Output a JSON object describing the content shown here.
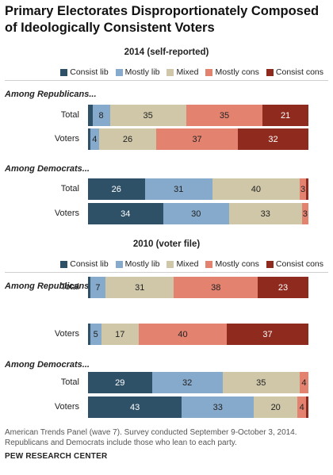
{
  "title": "Primary Electorates Disproportionately Composed of Ideologically Consistent Voters",
  "colors": {
    "consist_lib": "#2f5168",
    "mostly_lib": "#86aacb",
    "mixed": "#cfc7a8",
    "mostly_cons": "#e48270",
    "consist_cons": "#8f2a1e"
  },
  "legend": [
    "Consist lib",
    "Mostly lib",
    "Mixed",
    "Mostly cons",
    "Consist cons"
  ],
  "chart_data": [
    {
      "type": "bar",
      "stacked": true,
      "orientation": "horizontal",
      "title": "2014 (self-reported)",
      "legend_placement": "top-right",
      "categories": [
        "Consist lib",
        "Mostly lib",
        "Mixed",
        "Mostly cons",
        "Consist cons"
      ],
      "groups": [
        {
          "label": "Among Republicans...",
          "rows": [
            {
              "label": "Total",
              "values": [
                2,
                8,
                35,
                35,
                21
              ],
              "labels": [
                "",
                "8",
                "35",
                "35",
                "21"
              ]
            },
            {
              "label": "Voters",
              "values": [
                1,
                4,
                26,
                37,
                32
              ],
              "labels": [
                "",
                "4",
                "26",
                "37",
                "32"
              ]
            }
          ]
        },
        {
          "label": "Among Democrats...",
          "rows": [
            {
              "label": "Total",
              "values": [
                26,
                31,
                40,
                3,
                1
              ],
              "labels": [
                "26",
                "31",
                "40",
                "3",
                ""
              ]
            },
            {
              "label": "Voters",
              "values": [
                34,
                30,
                33,
                3,
                0
              ],
              "labels": [
                "34",
                "30",
                "33",
                "3",
                ""
              ]
            }
          ]
        }
      ]
    },
    {
      "type": "bar",
      "stacked": true,
      "orientation": "horizontal",
      "title": "2010 (voter file)",
      "legend_placement": "top-right",
      "categories": [
        "Consist lib",
        "Mostly lib",
        "Mixed",
        "Mostly cons",
        "Consist cons"
      ],
      "groups": [
        {
          "label": "Among Republicans...",
          "rows": [
            {
              "label": "Total",
              "values": [
                1,
                7,
                31,
                38,
                23
              ],
              "labels": [
                "",
                "7",
                "31",
                "38",
                "23"
              ]
            },
            {
              "label": "Voters",
              "values": [
                1,
                5,
                17,
                40,
                37
              ],
              "labels": [
                "",
                "5",
                "17",
                "40",
                "37"
              ]
            }
          ]
        },
        {
          "label": "Among Democrats...",
          "rows": [
            {
              "label": "Total",
              "values": [
                29,
                32,
                35,
                4,
                0
              ],
              "labels": [
                "29",
                "32",
                "35",
                "4",
                ""
              ]
            },
            {
              "label": "Voters",
              "values": [
                43,
                33,
                20,
                4,
                1
              ],
              "labels": [
                "43",
                "33",
                "20",
                "4",
                ""
              ]
            }
          ]
        }
      ]
    }
  ],
  "footnote": "American Trends Panel (wave 7). Survey conducted September 9-October 3, 2014. Republicans and Democrats include those who lean to each party.",
  "source": "PEW RESEARCH CENTER"
}
